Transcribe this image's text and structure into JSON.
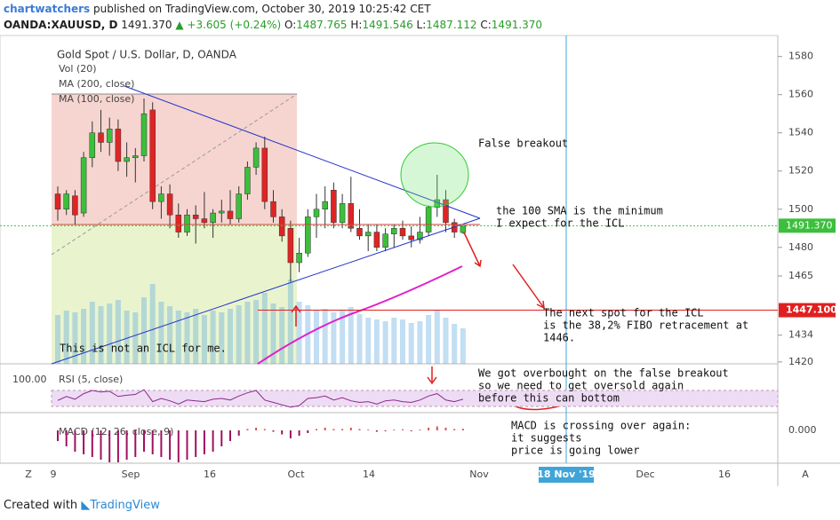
{
  "header": {
    "author": "chartwatchers",
    "published": "published on TradingView.com, October 30, 2019 10:25:42 CET",
    "symbol": "OANDA:XAUUSD, D",
    "last": "1491.370",
    "change": "▲ +3.605 (+0.24%)",
    "o_label": "O:",
    "o": "1487.765",
    "h_label": "H:",
    "h": "1491.546",
    "l_label": "L:",
    "l": "1487.112",
    "c_label": "C:",
    "c": "1491.370"
  },
  "legend": {
    "title": "Gold Spot / U.S. Dollar, D, OANDA",
    "vol": "Vol (20)",
    "ma200": "MA (200, close)",
    "ma100": "MA (100, close)"
  },
  "chart_data": {
    "type": "candlestick",
    "up_color": "#3cbf3c",
    "down_color": "#e02424",
    "ohlc": [
      [
        1508,
        1512,
        1494,
        1500
      ],
      [
        1500,
        1510,
        1497,
        1508
      ],
      [
        1507,
        1510,
        1492,
        1497
      ],
      [
        1498,
        1530,
        1496,
        1527
      ],
      [
        1527,
        1546,
        1522,
        1540
      ],
      [
        1540,
        1552,
        1530,
        1535
      ],
      [
        1535,
        1548,
        1528,
        1542
      ],
      [
        1542,
        1547,
        1520,
        1525
      ],
      [
        1525,
        1535,
        1517,
        1527
      ],
      [
        1527,
        1532,
        1514,
        1528
      ],
      [
        1528,
        1558,
        1525,
        1550
      ],
      [
        1552,
        1556,
        1500,
        1504
      ],
      [
        1504,
        1512,
        1495,
        1508
      ],
      [
        1508,
        1513,
        1490,
        1497
      ],
      [
        1497,
        1503,
        1485,
        1488
      ],
      [
        1488,
        1500,
        1486,
        1497
      ],
      [
        1497,
        1502,
        1482,
        1495
      ],
      [
        1495,
        1509,
        1490,
        1493
      ],
      [
        1493,
        1500,
        1485,
        1498
      ],
      [
        1498,
        1505,
        1493,
        1499
      ],
      [
        1499,
        1510,
        1492,
        1495
      ],
      [
        1495,
        1512,
        1493,
        1508
      ],
      [
        1508,
        1525,
        1505,
        1522
      ],
      [
        1522,
        1535,
        1518,
        1532
      ],
      [
        1532,
        1538,
        1500,
        1504
      ],
      [
        1504,
        1510,
        1493,
        1496
      ],
      [
        1496,
        1500,
        1483,
        1486
      ],
      [
        1490,
        1494,
        1462,
        1472
      ],
      [
        1472,
        1485,
        1467,
        1477
      ],
      [
        1477,
        1500,
        1475,
        1496
      ],
      [
        1496,
        1508,
        1485,
        1500
      ],
      [
        1500,
        1512,
        1490,
        1504
      ],
      [
        1510,
        1514,
        1490,
        1493
      ],
      [
        1493,
        1508,
        1490,
        1503
      ],
      [
        1503,
        1517,
        1488,
        1490
      ],
      [
        1490,
        1500,
        1484,
        1486
      ],
      [
        1486,
        1492,
        1478,
        1488
      ],
      [
        1488,
        1492,
        1478,
        1480
      ],
      [
        1480,
        1490,
        1478,
        1487
      ],
      [
        1487,
        1492,
        1480,
        1490
      ],
      [
        1490,
        1494,
        1484,
        1486
      ],
      [
        1486,
        1491,
        1480,
        1484
      ],
      [
        1484,
        1496,
        1482,
        1488
      ],
      [
        1488,
        1502,
        1486,
        1501
      ],
      [
        1501,
        1518,
        1496,
        1505
      ],
      [
        1505,
        1510,
        1488,
        1493
      ],
      [
        1493,
        1495,
        1485,
        1488
      ],
      [
        1487.765,
        1491.546,
        1487.112,
        1491.37
      ]
    ],
    "volume": [
      55,
      60,
      58,
      62,
      70,
      65,
      68,
      72,
      60,
      58,
      75,
      90,
      70,
      65,
      60,
      58,
      62,
      55,
      60,
      58,
      62,
      66,
      70,
      72,
      80,
      68,
      64,
      95,
      70,
      66,
      60,
      62,
      58,
      60,
      64,
      56,
      52,
      50,
      48,
      52,
      50,
      46,
      48,
      55,
      60,
      52,
      45,
      40
    ],
    "rsi": [
      45,
      55,
      48,
      62,
      70,
      66,
      68,
      55,
      58,
      60,
      72,
      42,
      50,
      44,
      36,
      46,
      44,
      42,
      48,
      50,
      46,
      56,
      64,
      70,
      46,
      40,
      34,
      28,
      32,
      50,
      52,
      56,
      46,
      52,
      44,
      40,
      42,
      36,
      44,
      46,
      42,
      40,
      46,
      56,
      62,
      46,
      42,
      48
    ],
    "macd_hist": [
      -4,
      -6,
      -8,
      -9,
      -10,
      -11,
      -12,
      -12,
      -11,
      -10,
      -8,
      -9,
      -10,
      -11,
      -12,
      -11,
      -10,
      -9,
      -8,
      -6,
      -4,
      -2,
      0.5,
      1,
      0.5,
      -0.5,
      -1.5,
      -3,
      -2,
      -1,
      0.5,
      1,
      0.5,
      0.5,
      1,
      0.5,
      0.3,
      -0.5,
      -0.3,
      0.3,
      0.4,
      -0.3,
      0.3,
      1,
      1.5,
      1,
      0.5,
      0.6
    ],
    "ylim": [
      1419,
      1591
    ],
    "yticks": [
      1420,
      1434,
      1465,
      1480,
      1500,
      1520,
      1540,
      1560,
      1580
    ],
    "price_tag": {
      "value": 1491.37,
      "label": "1491.370"
    },
    "level": {
      "value": 1447.1,
      "label": "1447.100"
    },
    "rsi_label": "RSI (5, close)",
    "rsi_tick": "100.00",
    "macd_label": "MACD (12, 26, close, 9)",
    "macd_tick": "0.000",
    "time_labels": [
      "9",
      "Sep",
      "16",
      "Oct",
      "14",
      "Nov",
      "18 Nov '19",
      "Dec",
      "16"
    ]
  },
  "annotations": [
    {
      "lines": [
        "False breakout"
      ]
    },
    {
      "lines": [
        "the 100 SMA is the minimum",
        "I expect for the ICL"
      ]
    },
    {
      "lines": [
        "The next spot for the ICL",
        "is the 38,2% FIBO retracement at",
        "1446."
      ]
    },
    {
      "lines": [
        "This is not an ICL for me."
      ]
    },
    {
      "lines": [
        "We got overbought on the false breakout",
        "so we need to get oversold again",
        "before this can bottom"
      ]
    },
    {
      "lines": [
        "MACD is crossing over again:",
        "it suggests",
        "price is going lower"
      ]
    }
  ],
  "footer": {
    "created": "Created with",
    "brand": "TradingView"
  },
  "corner": {
    "left": "Z",
    "right": "A"
  }
}
